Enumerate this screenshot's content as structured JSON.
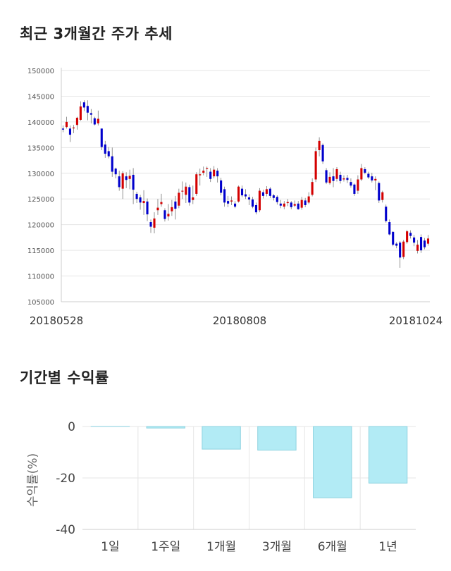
{
  "titles": {
    "price_trend": "최근 3개월간 주가 추세",
    "period_return": "기간별 수익률"
  },
  "colors": {
    "up": "#d40000",
    "down": "#0000cc",
    "bar_fill": "#b2ebf5",
    "bar_stroke": "#8fd3e0",
    "grid": "#e6e6e6"
  },
  "chart_data": [
    {
      "type": "candlestick",
      "title": "최근 3개월간 주가 추세",
      "ylim": [
        105000,
        150000
      ],
      "y_ticks": [
        "105000",
        "110000",
        "115000",
        "120000",
        "125000",
        "130000",
        "135000",
        "140000",
        "145000",
        "150000"
      ],
      "x_tick_labels": [
        "20180528",
        "20180808",
        "20181024"
      ],
      "grid": true,
      "candles": [
        [
          138700,
          138500,
          139300,
          138000
        ],
        [
          139000,
          140000,
          141000,
          138700
        ],
        [
          138700,
          137500,
          139300,
          136100
        ],
        [
          138800,
          138900,
          139400,
          137800
        ],
        [
          139400,
          140800,
          141000,
          138500
        ],
        [
          140400,
          143000,
          144000,
          140200
        ],
        [
          143800,
          142800,
          144200,
          142100
        ],
        [
          143100,
          141800,
          144200,
          140300
        ],
        [
          141700,
          141400,
          142500,
          139700
        ],
        [
          140700,
          139500,
          141000,
          139300
        ],
        [
          139700,
          140600,
          142200,
          139300
        ],
        [
          138700,
          135100,
          138700,
          134500
        ],
        [
          135600,
          133800,
          136300,
          133000
        ],
        [
          134300,
          133300,
          135100,
          132900
        ],
        [
          133300,
          130300,
          135000,
          129300
        ],
        [
          130900,
          129800,
          131100,
          129000
        ],
        [
          129400,
          127300,
          130500,
          126600
        ],
        [
          127000,
          130000,
          130400,
          125000
        ],
        [
          129400,
          128700,
          130200,
          127100
        ],
        [
          128900,
          129500,
          130700,
          126900
        ],
        [
          129700,
          126800,
          131000,
          124000
        ],
        [
          126000,
          125000,
          126400,
          124200
        ],
        [
          125300,
          124300,
          125800,
          122900
        ],
        [
          124200,
          124600,
          126700,
          121900
        ],
        [
          124500,
          122000,
          125100,
          120700
        ],
        [
          120500,
          119600,
          121000,
          118400
        ],
        [
          119400,
          121200,
          122400,
          118300
        ],
        [
          122800,
          123300,
          125000,
          121900
        ],
        [
          124000,
          124400,
          126000,
          123500
        ],
        [
          122800,
          121100,
          123200,
          120600
        ],
        [
          121600,
          122100,
          124000,
          120800
        ],
        [
          122600,
          123400,
          124800,
          121700
        ],
        [
          124500,
          123100,
          125600,
          121000
        ],
        [
          123700,
          126200,
          127000,
          123200
        ],
        [
          126600,
          126600,
          128400,
          125000
        ],
        [
          125800,
          127400,
          128200,
          124200
        ],
        [
          127300,
          124300,
          127800,
          123700
        ],
        [
          124800,
          125300,
          127600,
          124000
        ],
        [
          126000,
          129800,
          130200,
          125600
        ],
        [
          129600,
          129800,
          130900,
          127600
        ],
        [
          130100,
          130500,
          131300,
          129600
        ],
        [
          130900,
          131000,
          131300,
          129300
        ],
        [
          130300,
          128900,
          131000,
          128300
        ],
        [
          129400,
          130700,
          131400,
          129000
        ],
        [
          130500,
          129400,
          131000,
          128200
        ],
        [
          128600,
          126200,
          129100,
          125700
        ],
        [
          126900,
          124300,
          127400,
          123500
        ],
        [
          124600,
          124100,
          125600,
          123400
        ],
        [
          124500,
          124700,
          125500,
          123800
        ],
        [
          124100,
          123500,
          124600,
          123200
        ],
        [
          124500,
          127400,
          127600,
          124300
        ],
        [
          127000,
          125700,
          127600,
          125300
        ],
        [
          125900,
          125500,
          126900,
          125000
        ],
        [
          125300,
          124900,
          125900,
          123800
        ],
        [
          124900,
          123500,
          125400,
          123200
        ],
        [
          123800,
          122400,
          124300,
          122000
        ],
        [
          122800,
          126600,
          127100,
          122400
        ],
        [
          126300,
          125600,
          126800,
          125100
        ],
        [
          126000,
          126900,
          127500,
          125500
        ],
        [
          127000,
          125600,
          127300,
          125200
        ],
        [
          125700,
          125200,
          126000,
          124700
        ],
        [
          125400,
          124400,
          125700,
          123900
        ],
        [
          124100,
          123700,
          124800,
          123200
        ],
        [
          123500,
          124100,
          124600,
          123000
        ],
        [
          124200,
          124400,
          125000,
          123600
        ],
        [
          124300,
          123400,
          124600,
          123000
        ],
        [
          123700,
          124000,
          124700,
          123400
        ],
        [
          124100,
          123000,
          124600,
          122900
        ],
        [
          123300,
          124800,
          125400,
          122900
        ],
        [
          124700,
          123800,
          125200,
          123400
        ],
        [
          124300,
          125500,
          126300,
          124000
        ],
        [
          125800,
          128300,
          129000,
          125500
        ],
        [
          128800,
          134300,
          135000,
          128300
        ],
        [
          134500,
          136300,
          137000,
          133300
        ],
        [
          135500,
          132300,
          135800,
          131800
        ],
        [
          130600,
          128200,
          131000,
          127900
        ],
        [
          128100,
          129300,
          130200,
          127800
        ],
        [
          129400,
          128500,
          131000,
          127300
        ],
        [
          128900,
          130800,
          131200,
          128400
        ],
        [
          129700,
          128500,
          130300,
          128000
        ],
        [
          128800,
          129000,
          129600,
          128400
        ],
        [
          129100,
          128700,
          129700,
          128100
        ],
        [
          128300,
          127600,
          129000,
          127200
        ],
        [
          127800,
          126000,
          128000,
          125600
        ],
        [
          126600,
          128800,
          129600,
          126000
        ],
        [
          128800,
          131000,
          131800,
          128500
        ],
        [
          130800,
          130100,
          131200,
          129800
        ],
        [
          129900,
          129200,
          130300,
          128900
        ],
        [
          129400,
          128600,
          130100,
          128200
        ],
        [
          128600,
          128900,
          129400,
          126700
        ],
        [
          128100,
          124700,
          128400,
          124200
        ],
        [
          124800,
          126300,
          126600,
          124300
        ],
        [
          123500,
          120700,
          123900,
          120400
        ],
        [
          120500,
          118100,
          121000,
          117900
        ],
        [
          118600,
          116100,
          118700,
          115800
        ],
        [
          116300,
          115900,
          116600,
          115400
        ],
        [
          116500,
          113600,
          116800,
          111600
        ],
        [
          113700,
          116700,
          117000,
          113300
        ],
        [
          116600,
          118700,
          119000,
          116300
        ],
        [
          118400,
          117800,
          118900,
          117300
        ],
        [
          117500,
          116500,
          118000,
          115800
        ],
        [
          114900,
          116100,
          117000,
          114400
        ],
        [
          117600,
          115000,
          118100,
          114500
        ],
        [
          116900,
          115600,
          117400,
          115200
        ],
        [
          116300,
          117300,
          118000,
          115900
        ]
      ]
    },
    {
      "type": "bar",
      "title": "기간별 수익률",
      "ylabel": "수익률(%)",
      "categories": [
        "1일",
        "1주일",
        "1개월",
        "3개월",
        "6개월",
        "1년"
      ],
      "values": [
        0,
        -0.6,
        -8.8,
        -9.2,
        -27.7,
        -22.0
      ],
      "ylim": [
        -40,
        0
      ],
      "y_ticks": [
        "0",
        "-20",
        "-40"
      ],
      "grid": true
    }
  ]
}
